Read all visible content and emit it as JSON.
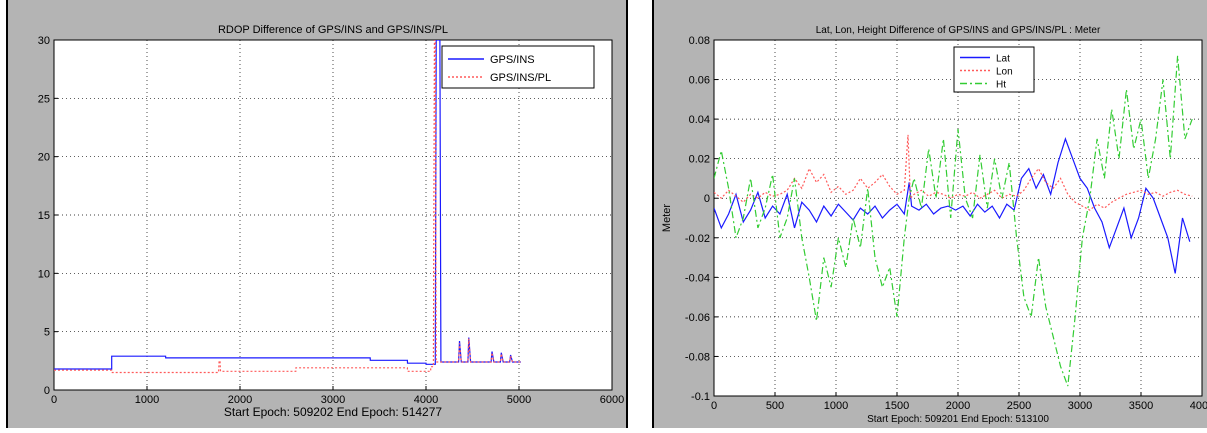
{
  "chart_data": [
    {
      "type": "line",
      "title": "RDOP Difference of GPS/INS and GPS/INS/PL",
      "xlabel": "Start Epoch: 509202 End Epoch: 514277",
      "ylabel": "",
      "xlim": [
        0,
        6000
      ],
      "ylim": [
        0,
        30
      ],
      "xticks": [
        "0",
        "1000",
        "2000",
        "3000",
        "4000",
        "5000",
        "6000"
      ],
      "yticks": [
        "0",
        "5",
        "10",
        "15",
        "20",
        "25",
        "30"
      ],
      "grid": true,
      "legend_position": "top-right",
      "series": [
        {
          "name": "GPS/INS",
          "color": "#1a1aff",
          "dash": "solid",
          "x": [
            0,
            620,
            620,
            1200,
            1201,
            3400,
            3401,
            3800,
            3801,
            4000,
            4001,
            4100,
            4110,
            4150,
            4160,
            4350,
            4360,
            4380,
            4400,
            4450,
            4460,
            4480,
            4490,
            4700,
            4710,
            4730,
            4750,
            4800,
            4810,
            4830,
            4850,
            4900,
            4910,
            4930,
            4950,
            5020
          ],
          "y": [
            1.8,
            1.8,
            2.9,
            2.9,
            2.75,
            2.75,
            2.55,
            2.55,
            2.3,
            2.3,
            2.2,
            2.2,
            30,
            30,
            2.4,
            2.4,
            4.2,
            2.4,
            2.4,
            2.4,
            4.5,
            2.4,
            2.4,
            2.4,
            3.3,
            2.4,
            2.4,
            2.4,
            3.2,
            2.4,
            2.4,
            2.4,
            3.0,
            2.4,
            2.4,
            2.4
          ]
        },
        {
          "name": "GPS/INS/PL",
          "color": "#ff5a5a",
          "dash": "dotted",
          "x": [
            0,
            620,
            620,
            1770,
            1775,
            1785,
            1790,
            2600,
            2601,
            3800,
            3801,
            4050,
            4051,
            4080,
            4090,
            4100,
            4110,
            4150,
            4160,
            4350,
            4360,
            4380,
            4400,
            4450,
            4460,
            4480,
            4490,
            4700,
            4710,
            4730,
            4750,
            4800,
            4810,
            4830,
            4850,
            4900,
            4910,
            4930,
            4950,
            5020
          ],
          "y": [
            1.7,
            1.7,
            1.5,
            1.5,
            2.5,
            2.5,
            1.6,
            1.6,
            1.9,
            1.9,
            1.6,
            1.6,
            2.0,
            2.0,
            30,
            30,
            2.4,
            2.4,
            2.4,
            2.4,
            4.0,
            2.4,
            2.4,
            2.4,
            4.4,
            2.4,
            2.4,
            2.4,
            3.2,
            2.4,
            2.4,
            2.4,
            3.1,
            2.4,
            2.4,
            2.4,
            2.9,
            2.4,
            2.4,
            2.4
          ]
        }
      ]
    },
    {
      "type": "line",
      "title": "Lat, Lon, Height Difference of GPS/INS and GPS/INS/PL : Meter",
      "xlabel": "Start Epoch: 509201 End Epoch: 513100",
      "ylabel": "Meter",
      "xlim": [
        0,
        4000
      ],
      "ylim": [
        -0.1,
        0.08
      ],
      "xticks": [
        "0",
        "500",
        "1000",
        "1500",
        "2000",
        "2500",
        "3000",
        "3500",
        "4000"
      ],
      "yticks": [
        "-0.1",
        "-0.08",
        "-0.06",
        "-0.04",
        "-0.02",
        "0",
        "0.02",
        "0.04",
        "0.06",
        "0.08"
      ],
      "grid": true,
      "legend_position": "top-center",
      "series": [
        {
          "name": "Lat",
          "color": "#1a1aff",
          "dash": "solid",
          "x": [
            0,
            60,
            120,
            180,
            240,
            300,
            360,
            420,
            480,
            540,
            600,
            660,
            720,
            780,
            840,
            900,
            960,
            1020,
            1080,
            1140,
            1200,
            1260,
            1320,
            1380,
            1440,
            1500,
            1560,
            1600,
            1620,
            1680,
            1740,
            1800,
            1860,
            1920,
            1980,
            2040,
            2100,
            2160,
            2220,
            2280,
            2340,
            2400,
            2460,
            2520,
            2580,
            2640,
            2700,
            2760,
            2820,
            2880,
            2940,
            3000,
            3060,
            3120,
            3180,
            3240,
            3300,
            3360,
            3420,
            3480,
            3540,
            3600,
            3660,
            3720,
            3780,
            3840,
            3900
          ],
          "y": [
            -0.005,
            -0.015,
            -0.008,
            0.002,
            -0.012,
            -0.006,
            0.003,
            -0.01,
            -0.004,
            -0.008,
            0.002,
            -0.015,
            -0.002,
            -0.006,
            -0.012,
            -0.004,
            -0.009,
            -0.003,
            -0.007,
            -0.011,
            -0.005,
            -0.008,
            -0.004,
            -0.01,
            -0.006,
            -0.003,
            -0.008,
            0.008,
            -0.004,
            -0.006,
            -0.003,
            -0.008,
            -0.005,
            -0.004,
            -0.006,
            -0.004,
            -0.009,
            -0.003,
            -0.007,
            -0.004,
            -0.01,
            -0.003,
            -0.006,
            0.01,
            0.015,
            0.005,
            0.012,
            0.002,
            0.018,
            0.03,
            0.02,
            0.01,
            0.005,
            -0.005,
            -0.012,
            -0.025,
            -0.015,
            -0.005,
            -0.02,
            -0.01,
            0.005,
            0.0,
            -0.01,
            -0.02,
            -0.038,
            -0.01,
            -0.022
          ]
        },
        {
          "name": "Lon",
          "color": "#ff5a5a",
          "dash": "dotted",
          "x": [
            0,
            60,
            120,
            180,
            240,
            300,
            360,
            420,
            480,
            540,
            600,
            660,
            720,
            780,
            840,
            900,
            960,
            1020,
            1080,
            1140,
            1200,
            1260,
            1320,
            1380,
            1440,
            1500,
            1560,
            1590,
            1610,
            1640,
            1700,
            1760,
            1820,
            1880,
            1940,
            2000,
            2060,
            2120,
            2180,
            2240,
            2300,
            2360,
            2420,
            2480,
            2540,
            2600,
            2660,
            2720,
            2780,
            2840,
            2900,
            2960,
            3020,
            3080,
            3140,
            3200,
            3260,
            3320,
            3380,
            3440,
            3500,
            3560,
            3620,
            3680,
            3740,
            3800,
            3860,
            3920
          ],
          "y": [
            0.003,
            0.0,
            0.004,
            0.001,
            -0.002,
            0.002,
            0.0,
            0.003,
            0.001,
            0.002,
            0.004,
            0.01,
            0.005,
            0.015,
            0.008,
            0.012,
            0.003,
            0.006,
            0.002,
            0.004,
            0.01,
            0.005,
            0.008,
            0.012,
            0.006,
            0.002,
            0.004,
            0.032,
            0.0,
            0.002,
            0.004,
            0.001,
            0.003,
            0.002,
            0.0,
            0.002,
            0.001,
            0.003,
            0.0,
            0.002,
            0.004,
            0.0,
            0.002,
            0.001,
            0.004,
            0.01,
            0.015,
            0.008,
            0.005,
            0.01,
            0.002,
            -0.002,
            -0.004,
            -0.006,
            -0.003,
            -0.005,
            -0.002,
            0.0,
            0.002,
            0.003,
            0.004,
            0.002,
            0.003,
            0.001,
            0.003,
            0.004,
            0.002,
            0.001
          ]
        },
        {
          "name": "Ht",
          "color": "#33cc33",
          "dash": "dashdot",
          "x": [
            0,
            60,
            120,
            180,
            240,
            300,
            360,
            420,
            480,
            540,
            600,
            660,
            720,
            780,
            840,
            900,
            960,
            1020,
            1080,
            1140,
            1200,
            1260,
            1320,
            1380,
            1440,
            1500,
            1560,
            1600,
            1640,
            1700,
            1760,
            1820,
            1880,
            1940,
            2000,
            2060,
            2120,
            2180,
            2240,
            2300,
            2360,
            2420,
            2480,
            2540,
            2600,
            2660,
            2720,
            2780,
            2840,
            2900,
            2960,
            3020,
            3080,
            3140,
            3200,
            3260,
            3320,
            3380,
            3440,
            3500,
            3560,
            3620,
            3680,
            3740,
            3800,
            3860,
            3920
          ],
          "y": [
            0.01,
            0.024,
            0.005,
            -0.02,
            -0.01,
            0.01,
            -0.015,
            -0.005,
            0.012,
            -0.02,
            -0.01,
            0.01,
            -0.02,
            -0.04,
            -0.062,
            -0.03,
            -0.045,
            -0.02,
            -0.035,
            -0.01,
            -0.025,
            0.005,
            -0.03,
            -0.045,
            -0.035,
            -0.06,
            -0.02,
            0.0,
            0.01,
            -0.005,
            0.025,
            0.0,
            0.03,
            -0.01,
            0.035,
            0.0,
            -0.01,
            0.022,
            -0.005,
            0.02,
            0.0,
            0.018,
            -0.02,
            -0.05,
            -0.06,
            -0.03,
            -0.055,
            -0.07,
            -0.085,
            -0.095,
            -0.06,
            -0.02,
            0.0,
            0.03,
            0.01,
            0.045,
            0.02,
            0.055,
            0.025,
            0.04,
            0.01,
            0.03,
            0.06,
            0.02,
            0.072,
            0.03,
            0.04
          ]
        }
      ]
    }
  ]
}
